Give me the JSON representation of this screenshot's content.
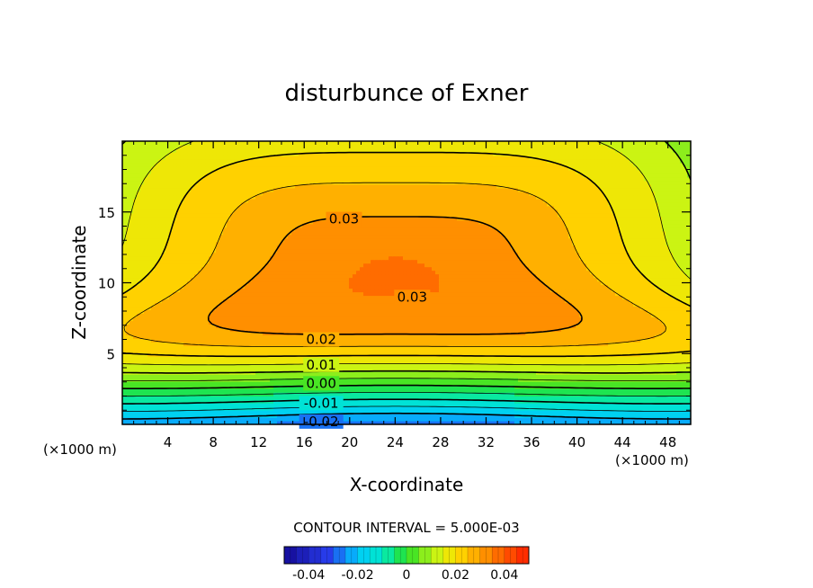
{
  "chart_data": {
    "type": "heatmap",
    "title": "disturbunce of Exner",
    "xlabel": "X-coordinate",
    "ylabel": "Z-coordinate",
    "x_unit_left": "(×1000 m)",
    "x_unit_right": "(×1000 m)",
    "xlim": [
      0,
      50
    ],
    "ylim": [
      0,
      20
    ],
    "x_ticks": [
      4,
      8,
      12,
      16,
      20,
      24,
      28,
      32,
      36,
      40,
      44,
      48
    ],
    "x_tick_labels": [
      "4",
      "8",
      "12",
      "16",
      "20",
      "24",
      "28",
      "32",
      "36",
      "40",
      "44",
      "48"
    ],
    "y_ticks": [
      5,
      10,
      15
    ],
    "y_tick_labels": [
      "5",
      "10",
      "15"
    ],
    "contour_interval_text": "CONTOUR INTERVAL = 5.000E-03",
    "contour_levels": [
      -0.02,
      -0.015,
      -0.01,
      -0.005,
      0.0,
      0.005,
      0.01,
      0.015,
      0.02,
      0.025,
      0.03
    ],
    "contour_labels": [
      {
        "text": "0.03",
        "x": 19.5,
        "y": 14.5
      },
      {
        "text": "0.03",
        "x": 25.5,
        "y": 9.0
      },
      {
        "text": "0.02",
        "x": 17.5,
        "y": 6.0
      },
      {
        "text": "0.01",
        "x": 17.5,
        "y": 4.2
      },
      {
        "text": "0.00",
        "x": 17.5,
        "y": 2.9
      },
      {
        "text": "-0.01",
        "x": 17.5,
        "y": 1.5
      },
      {
        "text": "-0.02",
        "x": 17.5,
        "y": 0.2
      }
    ],
    "field_extrema": {
      "min": -0.025,
      "max": 0.035,
      "max_center": [
        24,
        11.5
      ]
    },
    "colorbar": {
      "range": [
        -0.05,
        0.05
      ],
      "tick_labels": [
        "-0.04",
        "-0.02",
        "0",
        "0.02",
        "0.04"
      ],
      "tick_values": [
        -0.04,
        -0.02,
        0,
        0.02,
        0.04
      ]
    },
    "grid": false
  }
}
